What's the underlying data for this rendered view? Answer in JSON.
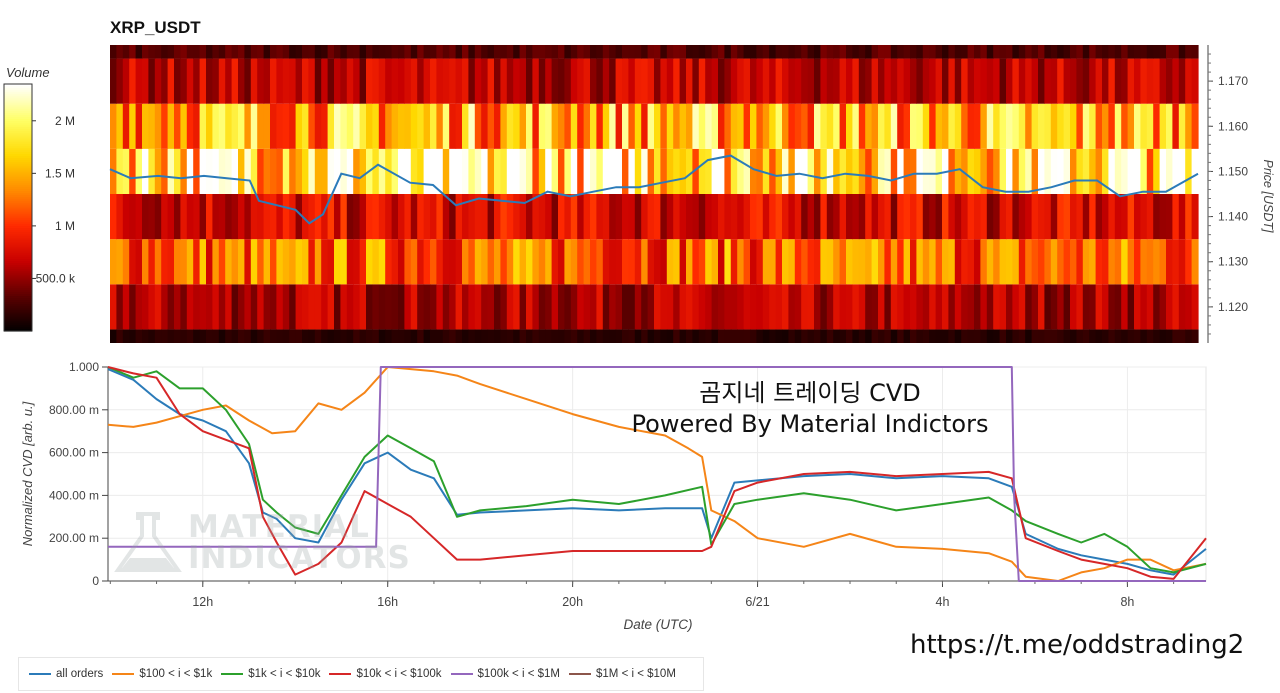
{
  "chart_data": [
    {
      "type": "heatmap",
      "title": "XRP_USDT",
      "ylabel": "Price [USDT]",
      "ylim": [
        1.112,
        1.178
      ],
      "yticks": [
        "1.170",
        "1.160",
        "1.150",
        "1.140",
        "1.130",
        "1.120"
      ],
      "ytick_values": [
        1.17,
        1.16,
        1.15,
        1.14,
        1.13,
        1.12
      ],
      "colorbar": {
        "label": "Volume",
        "ticks": [
          "2 M",
          "1.5 M",
          "1 M",
          "500.0 k"
        ],
        "tick_values": [
          2000000,
          1500000,
          1000000,
          500000
        ],
        "range": [
          0,
          2350000
        ],
        "colors": [
          "#000000",
          "#5a0000",
          "#c80000",
          "#ff2a00",
          "#ff8a00",
          "#ffd800",
          "#ffff66",
          "#ffffff"
        ]
      },
      "price_bands": [
        {
          "low": 1.112,
          "high": 1.115,
          "volume": 150000
        },
        {
          "low": 1.115,
          "high": 1.125,
          "volume": 600000
        },
        {
          "low": 1.125,
          "high": 1.135,
          "volume": 1200000
        },
        {
          "low": 1.135,
          "high": 1.145,
          "volume": 750000
        },
        {
          "low": 1.145,
          "high": 1.155,
          "volume": 1950000
        },
        {
          "low": 1.155,
          "high": 1.165,
          "volume": 1550000
        },
        {
          "low": 1.165,
          "high": 1.175,
          "volume": 650000
        },
        {
          "low": 1.175,
          "high": 1.178,
          "volume": 300000
        }
      ],
      "time_range_hours": [
        9.95,
        33.7
      ],
      "price_line": {
        "color": "#2b7bb9",
        "x_hours": [
          9.95,
          10.4,
          11,
          11.5,
          12,
          12.5,
          13,
          13.2,
          13.6,
          14,
          14.3,
          14.6,
          15,
          15.4,
          15.8,
          16.5,
          17,
          17.5,
          18,
          18.5,
          19,
          19.5,
          20,
          20.5,
          21,
          21.5,
          22,
          22.5,
          23,
          23.5,
          24,
          24.5,
          25,
          25.5,
          26,
          26.5,
          27,
          27.5,
          28,
          28.5,
          29,
          29.5,
          30,
          30.5,
          31,
          31.5,
          32,
          32.5,
          33,
          33.7
        ],
        "y_price": [
          1.1505,
          1.1485,
          1.149,
          1.1485,
          1.149,
          1.1485,
          1.148,
          1.1435,
          1.1425,
          1.1415,
          1.1385,
          1.1405,
          1.1495,
          1.1485,
          1.1515,
          1.1475,
          1.147,
          1.1425,
          1.144,
          1.1435,
          1.143,
          1.1455,
          1.1445,
          1.1455,
          1.1465,
          1.1465,
          1.1475,
          1.1485,
          1.1525,
          1.1535,
          1.1505,
          1.149,
          1.1495,
          1.1485,
          1.1495,
          1.149,
          1.148,
          1.1495,
          1.1495,
          1.1505,
          1.1465,
          1.1455,
          1.1455,
          1.1465,
          1.148,
          1.148,
          1.1445,
          1.1455,
          1.1455,
          1.1495
        ]
      }
    },
    {
      "type": "line",
      "xlabel": "Date (UTC)",
      "ylabel": "Normalized CVD [arb. u.]",
      "ylim": [
        0,
        1
      ],
      "xlim_hours": [
        9.95,
        33.7
      ],
      "xticks": [
        "12h",
        "16h",
        "20h",
        "6/21",
        "4h",
        "8h"
      ],
      "xtick_hours": [
        12,
        16,
        20,
        24,
        28,
        32
      ],
      "yticks": [
        "0",
        "200.00 m",
        "400.00 m",
        "600.00 m",
        "800.00 m",
        "1.000"
      ],
      "ytick_values": [
        0,
        0.2,
        0.4,
        0.6,
        0.8,
        1.0
      ],
      "annotations": [
        "곰지네 트레이딩 CVD",
        "Powered By Material Indictors"
      ],
      "watermark": {
        "line1": "MATERIAL",
        "line2": "INDICATORS"
      },
      "series": [
        {
          "name": "all orders",
          "color": "#2b7bb9",
          "x": [
            9.95,
            10.5,
            11,
            11.5,
            12,
            12.5,
            13,
            13.3,
            13.6,
            14,
            14.5,
            15,
            15.5,
            16,
            16.5,
            17,
            17.5,
            18,
            19,
            20,
            21,
            22,
            22.8,
            23,
            23.5,
            24,
            25,
            26,
            27,
            28,
            29,
            29.5,
            29.8,
            30.5,
            31,
            31.5,
            32,
            32.5,
            33,
            33.7
          ],
          "y": [
            0.99,
            0.94,
            0.85,
            0.78,
            0.75,
            0.7,
            0.55,
            0.32,
            0.29,
            0.2,
            0.18,
            0.38,
            0.55,
            0.6,
            0.52,
            0.48,
            0.31,
            0.32,
            0.33,
            0.34,
            0.33,
            0.34,
            0.34,
            0.2,
            0.46,
            0.47,
            0.49,
            0.5,
            0.48,
            0.49,
            0.48,
            0.44,
            0.22,
            0.15,
            0.12,
            0.1,
            0.08,
            0.05,
            0.03,
            0.15
          ]
        },
        {
          "name": "$100 < i < $1k",
          "color": "#f58518",
          "x": [
            9.95,
            10.5,
            11,
            11.5,
            12,
            12.5,
            13,
            13.5,
            14,
            14.5,
            15,
            15.5,
            16,
            16.5,
            17,
            17.5,
            18,
            19,
            20,
            21,
            22,
            22.5,
            22.8,
            23,
            23.5,
            24,
            25,
            26,
            27,
            28,
            29,
            29.5,
            29.8,
            30.5,
            31,
            31.5,
            32,
            32.5,
            33,
            33.7
          ],
          "y": [
            0.73,
            0.72,
            0.74,
            0.77,
            0.8,
            0.82,
            0.75,
            0.69,
            0.7,
            0.83,
            0.8,
            0.88,
            1.0,
            0.99,
            0.98,
            0.96,
            0.92,
            0.85,
            0.78,
            0.72,
            0.68,
            0.62,
            0.58,
            0.33,
            0.28,
            0.2,
            0.16,
            0.22,
            0.16,
            0.15,
            0.13,
            0.09,
            0.02,
            0.0,
            0.04,
            0.06,
            0.1,
            0.1,
            0.05,
            0.08
          ]
        },
        {
          "name": "$1k < i < $10k",
          "color": "#2ca02c",
          "x": [
            9.95,
            10.5,
            11,
            11.5,
            12,
            12.5,
            13,
            13.3,
            13.6,
            14,
            14.5,
            15,
            15.5,
            16,
            16.5,
            17,
            17.5,
            18,
            19,
            20,
            21,
            22,
            22.8,
            23,
            23.5,
            24,
            25,
            26,
            27,
            28,
            29,
            29.5,
            29.8,
            30.5,
            31,
            31.5,
            32,
            32.5,
            33,
            33.7
          ],
          "y": [
            1.0,
            0.95,
            0.98,
            0.9,
            0.9,
            0.8,
            0.64,
            0.38,
            0.32,
            0.25,
            0.22,
            0.4,
            0.58,
            0.68,
            0.62,
            0.56,
            0.3,
            0.33,
            0.35,
            0.38,
            0.36,
            0.4,
            0.44,
            0.17,
            0.36,
            0.38,
            0.41,
            0.38,
            0.33,
            0.36,
            0.39,
            0.33,
            0.28,
            0.22,
            0.18,
            0.22,
            0.16,
            0.06,
            0.04,
            0.08
          ]
        },
        {
          "name": "$10k < i < $100k",
          "color": "#d62728",
          "x": [
            9.95,
            10.5,
            11,
            11.5,
            12,
            12.5,
            13,
            13.3,
            13.6,
            14,
            14.5,
            15,
            15.5,
            16,
            16.5,
            17,
            17.5,
            18,
            19,
            20,
            21,
            22,
            22.8,
            23,
            23.5,
            24,
            25,
            26,
            27,
            28,
            29,
            29.5,
            29.8,
            30.5,
            31,
            31.5,
            32,
            32.5,
            33,
            33.7
          ],
          "y": [
            1.0,
            0.97,
            0.95,
            0.78,
            0.7,
            0.66,
            0.62,
            0.3,
            0.18,
            0.03,
            0.08,
            0.18,
            0.42,
            0.36,
            0.3,
            0.2,
            0.1,
            0.1,
            0.12,
            0.14,
            0.14,
            0.14,
            0.14,
            0.16,
            0.42,
            0.46,
            0.5,
            0.51,
            0.49,
            0.5,
            0.51,
            0.48,
            0.2,
            0.14,
            0.1,
            0.08,
            0.06,
            0.02,
            0.01,
            0.2
          ]
        },
        {
          "name": "$100k < i < $1M",
          "color": "#9467bd",
          "x": [
            9.95,
            15.75,
            15.85,
            29.5,
            29.55,
            29.65,
            33.7
          ],
          "y": [
            0.16,
            0.16,
            1.0,
            1.0,
            0.4,
            0.0,
            0.0
          ]
        },
        {
          "name": "$1M < i < $10M",
          "color": "#8c564b",
          "x": [],
          "y": []
        }
      ]
    }
  ],
  "annotation_lines": [
    "곰지네 트레이딩 CVD",
    "Powered By Material Indictors"
  ],
  "url": "https://t.me/oddstrading2"
}
